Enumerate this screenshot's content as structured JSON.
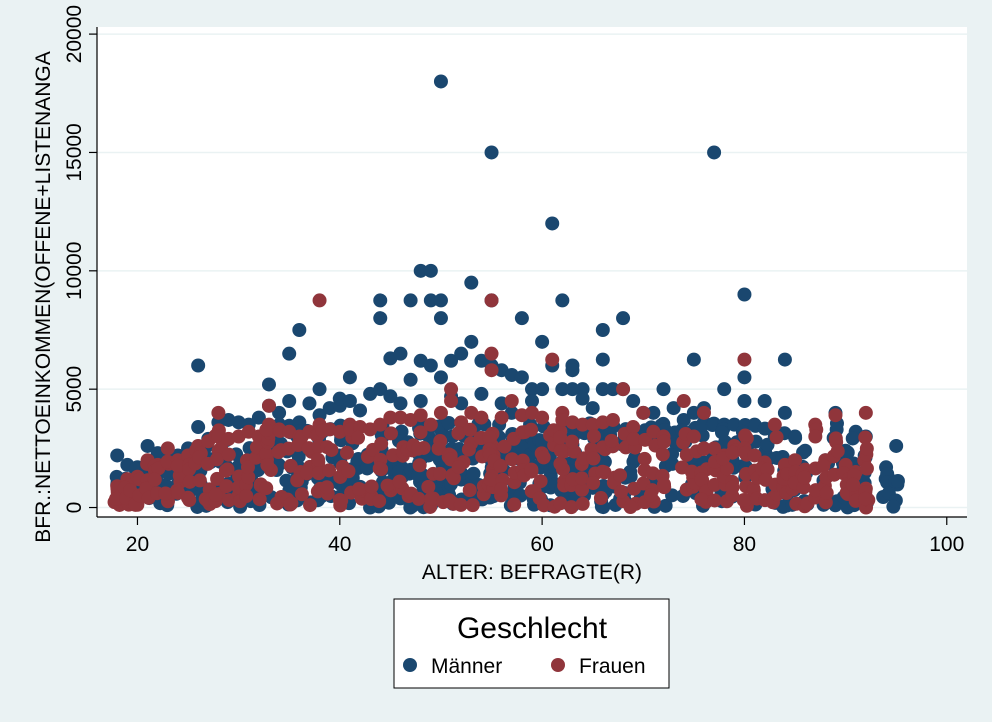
{
  "chart_data": {
    "type": "scatter",
    "xlabel": "ALTER: BEFRAGTE(R)",
    "ylabel": "BFR.:NETTOEINKOMMEN(OFFENE+LISTENANGA",
    "xlim": [
      16,
      102
    ],
    "ylim": [
      -400,
      20300
    ],
    "x_ticks": [
      20,
      40,
      60,
      80,
      100
    ],
    "y_ticks": [
      0,
      5000,
      10000,
      15000,
      20000
    ],
    "grid": "horizontal",
    "legend": {
      "title": "Geschlecht",
      "placement": "bottom-center",
      "entries": [
        "Männer",
        "Frauen"
      ]
    },
    "colors": {
      "background": "#eaf2f3",
      "plot_area": "#ffffff",
      "gridline": "#eaf2f3",
      "Männer": "#1a476f",
      "Frauen": "#90353b"
    },
    "series": [
      {
        "name": "Männer",
        "color": "#1a476f",
        "x": [
          18,
          19,
          20,
          21,
          22,
          23,
          24,
          25,
          26,
          26,
          27,
          28,
          29,
          30,
          31,
          32,
          33,
          33,
          34,
          35,
          35,
          36,
          36,
          37,
          38,
          38,
          39,
          40,
          40,
          41,
          41,
          42,
          43,
          44,
          44,
          44,
          45,
          45,
          46,
          46,
          47,
          47,
          48,
          48,
          48,
          49,
          49,
          49,
          50,
          50,
          50,
          50,
          51,
          51,
          52,
          52,
          53,
          53,
          54,
          54,
          55,
          55,
          55,
          56,
          56,
          57,
          57,
          58,
          58,
          59,
          59,
          60,
          60,
          61,
          61,
          62,
          62,
          63,
          63,
          63,
          64,
          64,
          65,
          66,
          66,
          66,
          67,
          68,
          68,
          69,
          70,
          71,
          72,
          73,
          74,
          75,
          75,
          76,
          76,
          77,
          78,
          78,
          79,
          80,
          80,
          80,
          81,
          82,
          83,
          84,
          84,
          85,
          86,
          88,
          89,
          90,
          91,
          92,
          94,
          95
        ],
        "y": [
          2200,
          1800,
          1700,
          2600,
          2300,
          2100,
          2200,
          2500,
          6000,
          3400,
          2900,
          3600,
          3700,
          3600,
          3500,
          3800,
          5200,
          4300,
          4000,
          6500,
          4500,
          3600,
          7500,
          4400,
          3900,
          5000,
          4200,
          4300,
          4600,
          5500,
          4500,
          4100,
          4800,
          8750,
          8000,
          5000,
          6300,
          4700,
          6500,
          4400,
          8750,
          5400,
          10000,
          6200,
          4500,
          10000,
          8750,
          6000,
          18000,
          8750,
          8000,
          5500,
          6200,
          4700,
          6500,
          4400,
          9500,
          7000,
          6200,
          4800,
          15000,
          8750,
          6000,
          5800,
          4400,
          5600,
          4000,
          8000,
          5500,
          5000,
          4500,
          7000,
          5000,
          12000,
          6000,
          8750,
          5000,
          6000,
          5800,
          5000,
          5000,
          4600,
          4200,
          7500,
          6250,
          5000,
          5000,
          8000,
          5000,
          4500,
          4000,
          4000,
          5000,
          4200,
          3700,
          6250,
          4000,
          3600,
          4200,
          15000,
          3500,
          5000,
          3500,
          9000,
          5500,
          4500,
          3500,
          4500,
          3000,
          6250,
          4000,
          3000,
          2400,
          2000,
          4000,
          2400,
          3200,
          3000,
          1700,
          2600
        ]
      },
      {
        "name": "Frauen",
        "color": "#90353b",
        "x": [
          18,
          19,
          20,
          21,
          22,
          23,
          24,
          25,
          26,
          27,
          28,
          28,
          29,
          30,
          31,
          32,
          33,
          33,
          34,
          35,
          36,
          37,
          38,
          38,
          39,
          40,
          41,
          42,
          43,
          44,
          45,
          46,
          47,
          48,
          49,
          50,
          51,
          51,
          52,
          53,
          54,
          55,
          55,
          55,
          56,
          57,
          58,
          59,
          60,
          61,
          62,
          62,
          63,
          64,
          65,
          66,
          67,
          68,
          69,
          70,
          71,
          72,
          74,
          75,
          76,
          76,
          77,
          78,
          79,
          80,
          80,
          81,
          82,
          83,
          84,
          85,
          86,
          87,
          88,
          89,
          90,
          91,
          92,
          92
        ],
        "y": [
          900,
          1200,
          1300,
          2000,
          1800,
          2500,
          2000,
          2200,
          2600,
          2800,
          4000,
          3000,
          2900,
          3000,
          3200,
          3000,
          4300,
          3500,
          3300,
          3200,
          3000,
          3200,
          8750,
          3500,
          3300,
          3200,
          3500,
          3400,
          3300,
          3500,
          3800,
          3800,
          3700,
          3900,
          3500,
          4000,
          5000,
          4500,
          3600,
          4000,
          3800,
          8750,
          6500,
          5800,
          3800,
          4500,
          3900,
          4000,
          3800,
          6250,
          4000,
          3700,
          3600,
          3500,
          3500,
          3600,
          3700,
          5000,
          3400,
          4000,
          3200,
          3000,
          4500,
          3000,
          4000,
          2500,
          2500,
          2200,
          2600,
          6250,
          2500,
          2200,
          1900,
          3500,
          1800,
          2000,
          1600,
          3500,
          2000,
          3900,
          1800,
          1500,
          4000,
          800
        ]
      }
    ]
  }
}
